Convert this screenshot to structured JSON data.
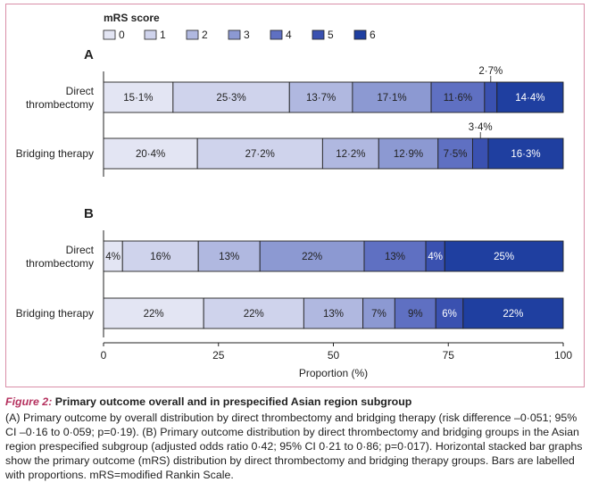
{
  "chart_data": {
    "type": "bar",
    "orientation": "horizontal",
    "stacked": true,
    "legend": {
      "title": "mRS score",
      "entries": [
        "0",
        "1",
        "2",
        "3",
        "4",
        "5",
        "6"
      ],
      "placement": "top-left"
    },
    "colors": [
      "#e3e5f3",
      "#cfd3ec",
      "#b0b8e0",
      "#8c99d2",
      "#5f70c2",
      "#3a51b0",
      "#1f3fa0"
    ],
    "xlim": [
      0,
      100
    ],
    "xticks": [
      "0",
      "25",
      "50",
      "75",
      "100"
    ],
    "xlabel": "Proportion (%)",
    "grid": false,
    "panels": [
      {
        "label": "A",
        "categories": [
          "Direct thrombectomy",
          "Bridging therapy"
        ],
        "values": [
          [
            15.1,
            25.3,
            13.7,
            17.1,
            11.6,
            2.7,
            14.4
          ],
          [
            20.4,
            27.2,
            12.2,
            12.9,
            7.5,
            3.4,
            16.3
          ]
        ],
        "labels": [
          [
            "15·1%",
            "25·3%",
            "13·7%",
            "17·1%",
            "11·6%",
            "2·7%",
            "14·4%"
          ],
          [
            "20·4%",
            "27·2%",
            "12·2%",
            "12·9%",
            "7·5%",
            "3·4%",
            "16·3%"
          ]
        ]
      },
      {
        "label": "B",
        "categories": [
          "Direct thrombectomy",
          "Bridging therapy"
        ],
        "values": [
          [
            4,
            16,
            13,
            22,
            13,
            4,
            25
          ],
          [
            22,
            22,
            13,
            7,
            9,
            6,
            22
          ]
        ],
        "labels": [
          [
            "4%",
            "16%",
            "13%",
            "22%",
            "13%",
            "4%",
            "25%"
          ],
          [
            "22%",
            "22%",
            "13%",
            "7%",
            "9%",
            "6%",
            "22%"
          ]
        ]
      }
    ]
  },
  "caption": {
    "figure_label": "Figure 2:",
    "title": "Primary outcome overall and in prespecified Asian region subgroup",
    "text": "(A) Primary outcome by overall distribution by direct thrombectomy and bridging therapy (risk difference –0·051; 95% CI –0·16 to 0·059; p=0·19). (B) Primary outcome distribution by direct thrombectomy and bridging groups in the Asian region prespecified subgroup (adjusted odds ratio 0·42; 95% CI 0·21 to 0·86; p=0·017). Horizontal stacked bar graphs show the primary outcome (mRS) distribution by direct thrombectomy and bridging therapy groups. Bars are labelled with proportions. mRS=modified Rankin Scale."
  }
}
